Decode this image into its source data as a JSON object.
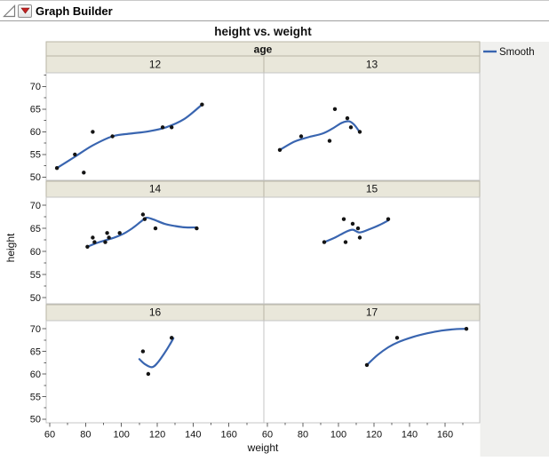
{
  "window": {
    "title": "Graph Builder",
    "disclosure_icon": "outline-triangle-collapse",
    "menu_icon": "red-triangle-menu"
  },
  "chart": {
    "title": "height vs. weight",
    "facet_label": "age",
    "xlabel": "weight",
    "ylabel": "height",
    "legend_label": "Smooth"
  },
  "colors": {
    "smooth_line": "#3965b0",
    "point": "#141414",
    "band_fill": "#e9e7da",
    "band_border": "#b9b6a6",
    "panel_border": "#c4c4c4",
    "tick": "#606060",
    "side_bg": "#f0f0ee",
    "menu_triangle": "#c32222"
  },
  "chart_data": {
    "type": "scatter",
    "title": "height vs. weight",
    "xlabel": "weight",
    "ylabel": "height",
    "facet_by": "age",
    "facet_levels": [
      "12",
      "13",
      "14",
      "15",
      "16",
      "17"
    ],
    "grid_layout": "3 rows x 2 columns",
    "x_ticks": [
      60,
      80,
      100,
      120,
      140,
      160
    ],
    "y_ticks": [
      50,
      55,
      60,
      65,
      70
    ],
    "x_range_approx": [
      58,
      180
    ],
    "y_range_approx": [
      49,
      73
    ],
    "legend": [
      {
        "label": "Smooth",
        "type": "line",
        "color": "#3965b0"
      }
    ],
    "panels": [
      {
        "age": "12",
        "points": [
          [
            64,
            52
          ],
          [
            74,
            55
          ],
          [
            79,
            51
          ],
          [
            84,
            60
          ],
          [
            95,
            59
          ],
          [
            123,
            61
          ],
          [
            128,
            61
          ],
          [
            145,
            66
          ]
        ],
        "smooth": [
          [
            64,
            52
          ],
          [
            74,
            54.5
          ],
          [
            84,
            57
          ],
          [
            95,
            59
          ],
          [
            105,
            59.6
          ],
          [
            115,
            60.1
          ],
          [
            125,
            61
          ],
          [
            135,
            62.8
          ],
          [
            145,
            66
          ]
        ]
      },
      {
        "age": "13",
        "points": [
          [
            67,
            56
          ],
          [
            79,
            59
          ],
          [
            95,
            58
          ],
          [
            98,
            65
          ],
          [
            105,
            63
          ],
          [
            107,
            61
          ],
          [
            112,
            60
          ]
        ],
        "smooth": [
          [
            67,
            56
          ],
          [
            75,
            57.8
          ],
          [
            83,
            58.8
          ],
          [
            91,
            59.6
          ],
          [
            97,
            60.8
          ],
          [
            102,
            62
          ],
          [
            106,
            62.3
          ],
          [
            109,
            61.5
          ],
          [
            112,
            59.9
          ]
        ]
      },
      {
        "age": "14",
        "points": [
          [
            81,
            61
          ],
          [
            84,
            63
          ],
          [
            85,
            62
          ],
          [
            91,
            62
          ],
          [
            92,
            64
          ],
          [
            93,
            63
          ],
          [
            99,
            64
          ],
          [
            112,
            68
          ],
          [
            113,
            67
          ],
          [
            119,
            65
          ],
          [
            142,
            65
          ]
        ],
        "smooth": [
          [
            81,
            61
          ],
          [
            86,
            61.8
          ],
          [
            91,
            62.4
          ],
          [
            96,
            63
          ],
          [
            101,
            63.8
          ],
          [
            106,
            65
          ],
          [
            111,
            66.5
          ],
          [
            114,
            67.3
          ],
          [
            118,
            66.9
          ],
          [
            124,
            66
          ],
          [
            130,
            65.5
          ],
          [
            136,
            65.2
          ],
          [
            142,
            65.2
          ]
        ]
      },
      {
        "age": "15",
        "points": [
          [
            92,
            62
          ],
          [
            103,
            67
          ],
          [
            104,
            62
          ],
          [
            108,
            66
          ],
          [
            111,
            65
          ],
          [
            112,
            63
          ],
          [
            128,
            67
          ]
        ],
        "smooth": [
          [
            92,
            62
          ],
          [
            98,
            63
          ],
          [
            104,
            64.2
          ],
          [
            108,
            64.7
          ],
          [
            112,
            64.1
          ],
          [
            118,
            64.9
          ],
          [
            123,
            65.7
          ],
          [
            128,
            66.7
          ]
        ]
      },
      {
        "age": "16",
        "points": [
          [
            112,
            65
          ],
          [
            115,
            60
          ],
          [
            128,
            68
          ]
        ],
        "smooth": [
          [
            110,
            63.3
          ],
          [
            113,
            62.2
          ],
          [
            117,
            61.5
          ],
          [
            120,
            62.4
          ],
          [
            124,
            64.6
          ],
          [
            127,
            66.5
          ],
          [
            129,
            67.9
          ]
        ]
      },
      {
        "age": "17",
        "points": [
          [
            116,
            62
          ],
          [
            133,
            68
          ],
          [
            172,
            70
          ]
        ],
        "smooth": [
          [
            116,
            62
          ],
          [
            122,
            64.2
          ],
          [
            128,
            65.9
          ],
          [
            134,
            67.1
          ],
          [
            142,
            68.2
          ],
          [
            150,
            69
          ],
          [
            158,
            69.6
          ],
          [
            165,
            69.9
          ],
          [
            172,
            70
          ]
        ]
      }
    ]
  }
}
